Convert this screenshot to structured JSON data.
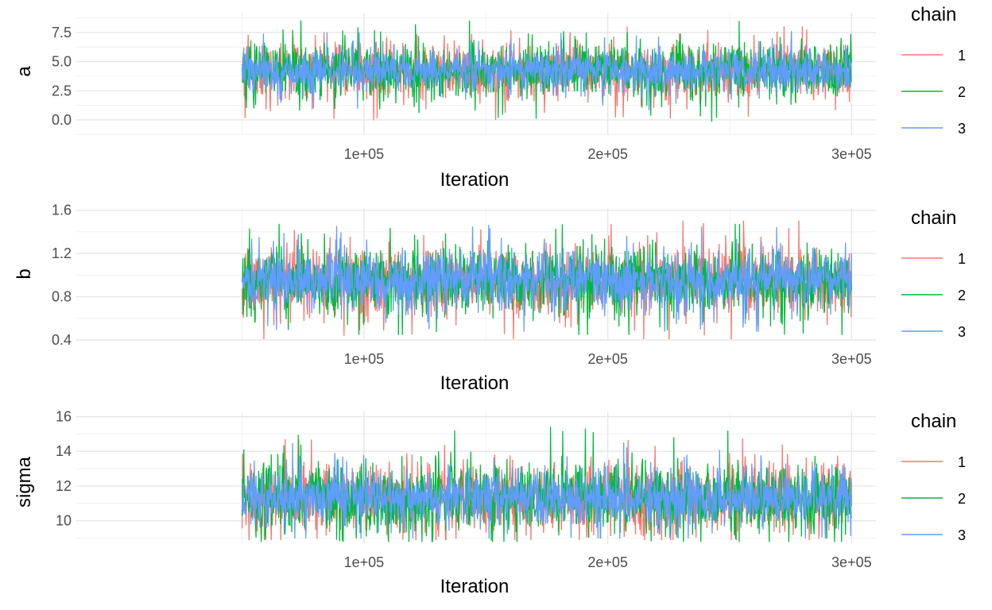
{
  "panel_layout": "stacked-vertical",
  "legend_title": "chain",
  "x_axis": {
    "label": "Iteration",
    "ticks": [
      100000,
      200000,
      300000
    ],
    "tick_labels": [
      "1e+05",
      "2e+05",
      "3e+05"
    ],
    "range": [
      50000,
      300000
    ],
    "limits": [
      -18000,
      310000
    ]
  },
  "chart_data": [
    {
      "type": "line",
      "ylabel": "a",
      "xlabel": "Iteration",
      "x_range": [
        50000,
        300000
      ],
      "y_ticks": [
        0.0,
        2.5,
        5.0,
        7.5
      ],
      "y_tick_labels": [
        "0.0",
        "2.5",
        "5.0",
        "7.5"
      ],
      "ylim": [
        -1.3,
        9.2
      ],
      "grid": true,
      "legend": "right",
      "series": [
        {
          "name": "1",
          "color": "#F8766D",
          "center": 4.2,
          "spread": 1.15,
          "min": 0.0,
          "max": 8.0
        },
        {
          "name": "2",
          "color": "#00BA38",
          "center": 4.2,
          "spread": 1.15,
          "min": -0.7,
          "max": 8.8
        },
        {
          "name": "3",
          "color": "#619CFF",
          "center": 4.2,
          "spread": 0.9,
          "min": 0.2,
          "max": 9.0
        }
      ]
    },
    {
      "type": "line",
      "ylabel": "b",
      "xlabel": "Iteration",
      "x_range": [
        50000,
        300000
      ],
      "y_ticks": [
        0.4,
        0.8,
        1.2,
        1.6
      ],
      "y_tick_labels": [
        "0.4",
        "0.8",
        "1.2",
        "1.6"
      ],
      "ylim": [
        0.4,
        1.62
      ],
      "grid": true,
      "legend": "right",
      "series": [
        {
          "name": "1",
          "color": "#F8766D",
          "center": 0.95,
          "spread": 0.16,
          "min": 0.41,
          "max": 1.5
        },
        {
          "name": "2",
          "color": "#00BA38",
          "center": 0.95,
          "spread": 0.16,
          "min": 0.45,
          "max": 1.47
        },
        {
          "name": "3",
          "color": "#619CFF",
          "center": 0.95,
          "spread": 0.14,
          "min": 0.48,
          "max": 1.55
        }
      ]
    },
    {
      "type": "line",
      "ylabel": "sigma",
      "xlabel": "Iteration",
      "x_range": [
        50000,
        300000
      ],
      "y_ticks": [
        10,
        12,
        14,
        16
      ],
      "y_tick_labels": [
        "10",
        "12",
        "14",
        "16"
      ],
      "ylim": [
        8.7,
        16.3
      ],
      "grid": true,
      "legend": "right",
      "series": [
        {
          "name": "1",
          "color": "#F8766D",
          "center": 11.3,
          "spread": 1.0,
          "min": 8.9,
          "max": 15.8
        },
        {
          "name": "2",
          "color": "#00BA38",
          "center": 11.3,
          "spread": 1.05,
          "min": 8.8,
          "max": 15.4
        },
        {
          "name": "3",
          "color": "#619CFF",
          "center": 11.3,
          "spread": 0.85,
          "min": 9.0,
          "max": 15.8
        }
      ]
    }
  ]
}
